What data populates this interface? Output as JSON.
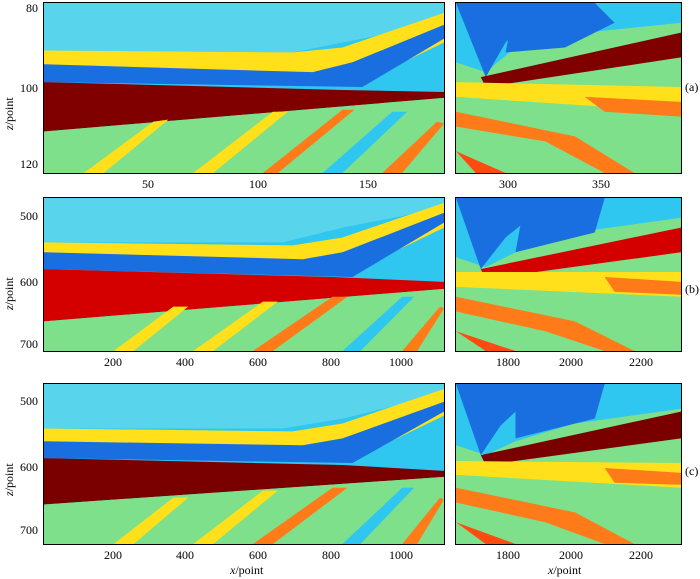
{
  "figure": {
    "rows": [
      {
        "tag": "(a)",
        "y_label": "z/point",
        "y_ticks": [
          "80",
          "100",
          "120"
        ],
        "left_x_ticks": [
          "50",
          "100",
          "150"
        ],
        "right_x_ticks": [
          "300",
          "350"
        ]
      },
      {
        "tag": "(b)",
        "y_label": "z/point",
        "y_ticks": [
          "500",
          "600",
          "700"
        ],
        "left_x_ticks": [
          "200",
          "400",
          "600",
          "800",
          "1000"
        ],
        "right_x_ticks": [
          "1800",
          "2000",
          "2200"
        ]
      },
      {
        "tag": "(c)",
        "y_label": "z/point",
        "y_ticks": [
          "500",
          "600",
          "700"
        ],
        "left_x_ticks": [
          "200",
          "400",
          "600",
          "800",
          "1000"
        ],
        "right_x_ticks": [
          "1800",
          "2000",
          "2200"
        ]
      }
    ],
    "x_label": "x/point",
    "colors": {
      "background": "#26c3f0",
      "light_cyan": "#4fd6ee",
      "dark_blue": "#1a6fe0",
      "yellow": "#ffe01a",
      "green": "#7ee08a",
      "orange": "#ff7a18",
      "red_layer_a": "#800000",
      "red_layer_b": "#d40000",
      "red_layer_c": "#7a0000"
    }
  }
}
